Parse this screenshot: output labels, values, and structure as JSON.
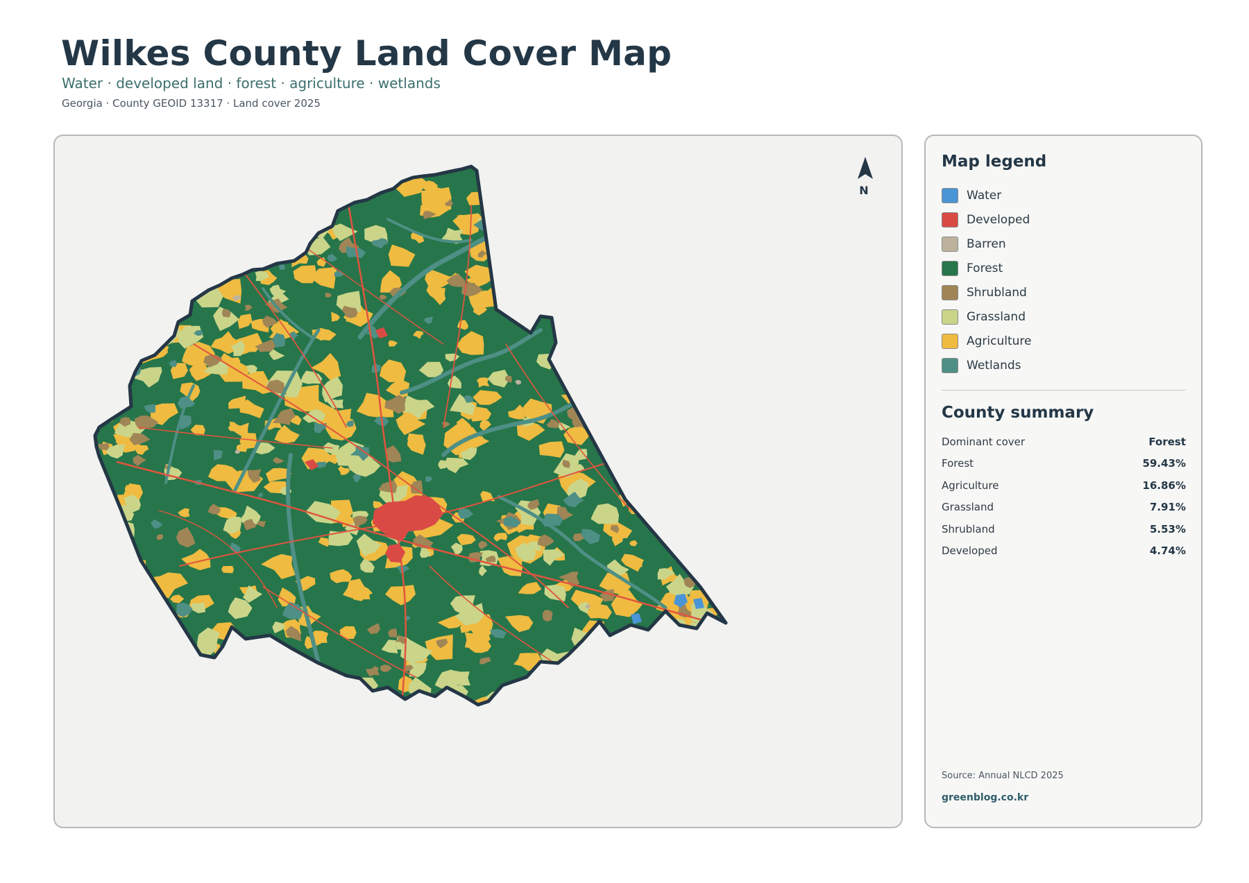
{
  "header": {
    "title": "Wilkes County Land Cover Map",
    "subtitle": "Water · developed land · forest · agriculture · wetlands",
    "meta": "Georgia · County GEOID 13317 · Land cover 2025"
  },
  "map": {
    "north_label": "N",
    "colors": {
      "water": "#4a95d6",
      "developed": "#d94a45",
      "barren": "#bdb29e",
      "forest": "#27754a",
      "shrubland": "#a08556",
      "grassland": "#cad58a",
      "agriculture": "#efbb41",
      "wetlands": "#4e8f86",
      "boundary": "#243746"
    }
  },
  "legend": {
    "title": "Map legend",
    "items": [
      {
        "label": "Water",
        "color": "#4a95d6"
      },
      {
        "label": "Developed",
        "color": "#d94a45"
      },
      {
        "label": "Barren",
        "color": "#bdb29e"
      },
      {
        "label": "Forest",
        "color": "#27754a"
      },
      {
        "label": "Shrubland",
        "color": "#a08556"
      },
      {
        "label": "Grassland",
        "color": "#cad58a"
      },
      {
        "label": "Agriculture",
        "color": "#efbb41"
      },
      {
        "label": "Wetlands",
        "color": "#4e8f86"
      }
    ]
  },
  "summary": {
    "title": "County summary",
    "rows": [
      {
        "label": "Dominant cover",
        "value": "Forest"
      },
      {
        "label": "Forest",
        "value": "59.43%"
      },
      {
        "label": "Agriculture",
        "value": "16.86%"
      },
      {
        "label": "Grassland",
        "value": "7.91%"
      },
      {
        "label": "Shrubland",
        "value": "5.53%"
      },
      {
        "label": "Developed",
        "value": "4.74%"
      }
    ]
  },
  "footer": {
    "source": "Source: Annual NLCD 2025",
    "site": "greenblog.co.kr"
  }
}
